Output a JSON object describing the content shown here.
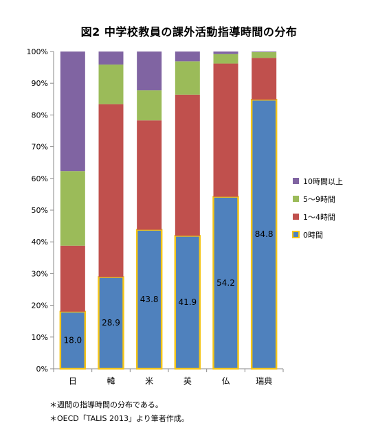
{
  "title": "図2 中学校教員の課外活動指導時間の分布",
  "notes": [
    "＊週間の指導時間の分布である。",
    "＊OECD「TALIS 2013」より筆者作成。"
  ],
  "colors": {
    "0h": "#4f81bd",
    "0h_border": "#f5c518",
    "1to4h": "#c0504d",
    "5to9h": "#9bbb59",
    "10plus": "#8064a2"
  },
  "chart_data": {
    "type": "bar",
    "stacked": true,
    "categories": [
      "日",
      "韓",
      "米",
      "英",
      "仏",
      "瑞典"
    ],
    "ylim": [
      0,
      100
    ],
    "yticks": [
      "0%",
      "10%",
      "20%",
      "30%",
      "40%",
      "50%",
      "60%",
      "70%",
      "80%",
      "90%",
      "100%"
    ],
    "series": [
      {
        "name": "0時間",
        "values": [
          18.0,
          28.9,
          43.8,
          41.9,
          54.2,
          84.8
        ],
        "labels": [
          "18.0",
          "28.9",
          "43.8",
          "41.9",
          "54.2",
          "84.8"
        ]
      },
      {
        "name": "1～4時間",
        "values": [
          20.8,
          54.5,
          34.5,
          44.5,
          42.0,
          13.2
        ]
      },
      {
        "name": "5～9時間",
        "values": [
          23.5,
          12.5,
          9.5,
          10.5,
          3.0,
          1.8
        ]
      },
      {
        "name": "10時間以上",
        "values": [
          37.7,
          4.1,
          12.2,
          3.1,
          0.8,
          0.2
        ]
      }
    ],
    "legend_order": [
      "10時間以上",
      "5～9時間",
      "1～4時間",
      "0時間"
    ],
    "legend_position": "right",
    "grid": false
  }
}
